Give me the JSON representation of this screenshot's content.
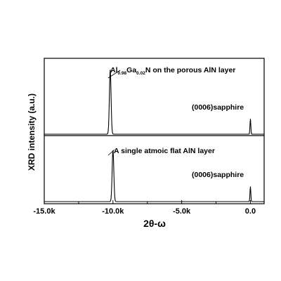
{
  "chart_data": {
    "type": "line",
    "xlabel_main": "2θ-ω",
    "ylabel": "XRD intensity (a.u.)",
    "xlim": [
      -15000,
      1000
    ],
    "x_ticks": [
      {
        "value": -15000,
        "label": "-15.0k"
      },
      {
        "value": -10000,
        "label": "-10.0k"
      },
      {
        "value": -5000,
        "label": "-5.0k"
      },
      {
        "value": 0,
        "label": "0.0"
      }
    ],
    "panels": [
      {
        "position": "top",
        "series": {
          "peaks": [
            {
              "x": -10200,
              "height": 0.92,
              "width": 120
            },
            {
              "x": 0,
              "height": 0.22,
              "width": 60
            }
          ]
        },
        "annotations": [
          {
            "parts": [
              {
                "text": "Al",
                "sub": false
              },
              {
                "text": "0.98",
                "sub": true
              },
              {
                "text": "Ga",
                "sub": false
              },
              {
                "text": "0.02",
                "sub": true
              },
              {
                "text": "N on the porous AlN layer",
                "sub": false
              }
            ]
          },
          {
            "parts": [
              {
                "text": "(0006)sapphire",
                "sub": false
              }
            ]
          }
        ]
      },
      {
        "position": "bottom",
        "series": {
          "peaks": [
            {
              "x": -10000,
              "height": 0.82,
              "width": 120
            },
            {
              "x": 0,
              "height": 0.24,
              "width": 60
            }
          ]
        },
        "annotations": [
          {
            "parts": [
              {
                "text": "A single atmoic flat AlN layer",
                "sub": false
              }
            ]
          },
          {
            "parts": [
              {
                "text": "(0006)sapphire",
                "sub": false
              }
            ]
          }
        ]
      }
    ]
  }
}
